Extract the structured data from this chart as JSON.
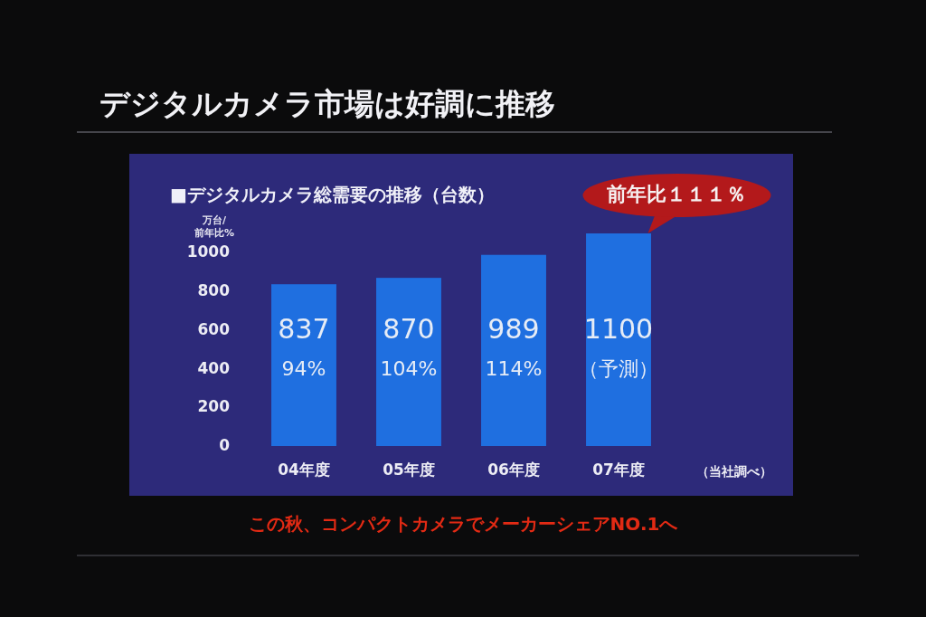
{
  "chart_data": {
    "type": "bar",
    "title": "デジタルカメラ市場は好調に推移",
    "subtitle": "■デジタルカメラ総需要の推移（台数）",
    "ylabel": "万台/\n前年比%",
    "categories": [
      "04年度",
      "05年度",
      "06年度",
      "07年度"
    ],
    "values": [
      837,
      870,
      989,
      1100
    ],
    "color": "#1f6fe0",
    "data_labels": true,
    "ylim": [
      0,
      1100
    ],
    "yticks": [
      0,
      200,
      400,
      600,
      800,
      1000
    ],
    "annotations": [
      "94%",
      "104%",
      "114%",
      "（予測）",
      {
        "text": "前年比１１１％",
        "x": "07年度",
        "y": 1100
      },
      "（当社調べ）",
      "この秋、コンパクトカメラでメーカーシェアNO.1へ"
    ]
  }
}
